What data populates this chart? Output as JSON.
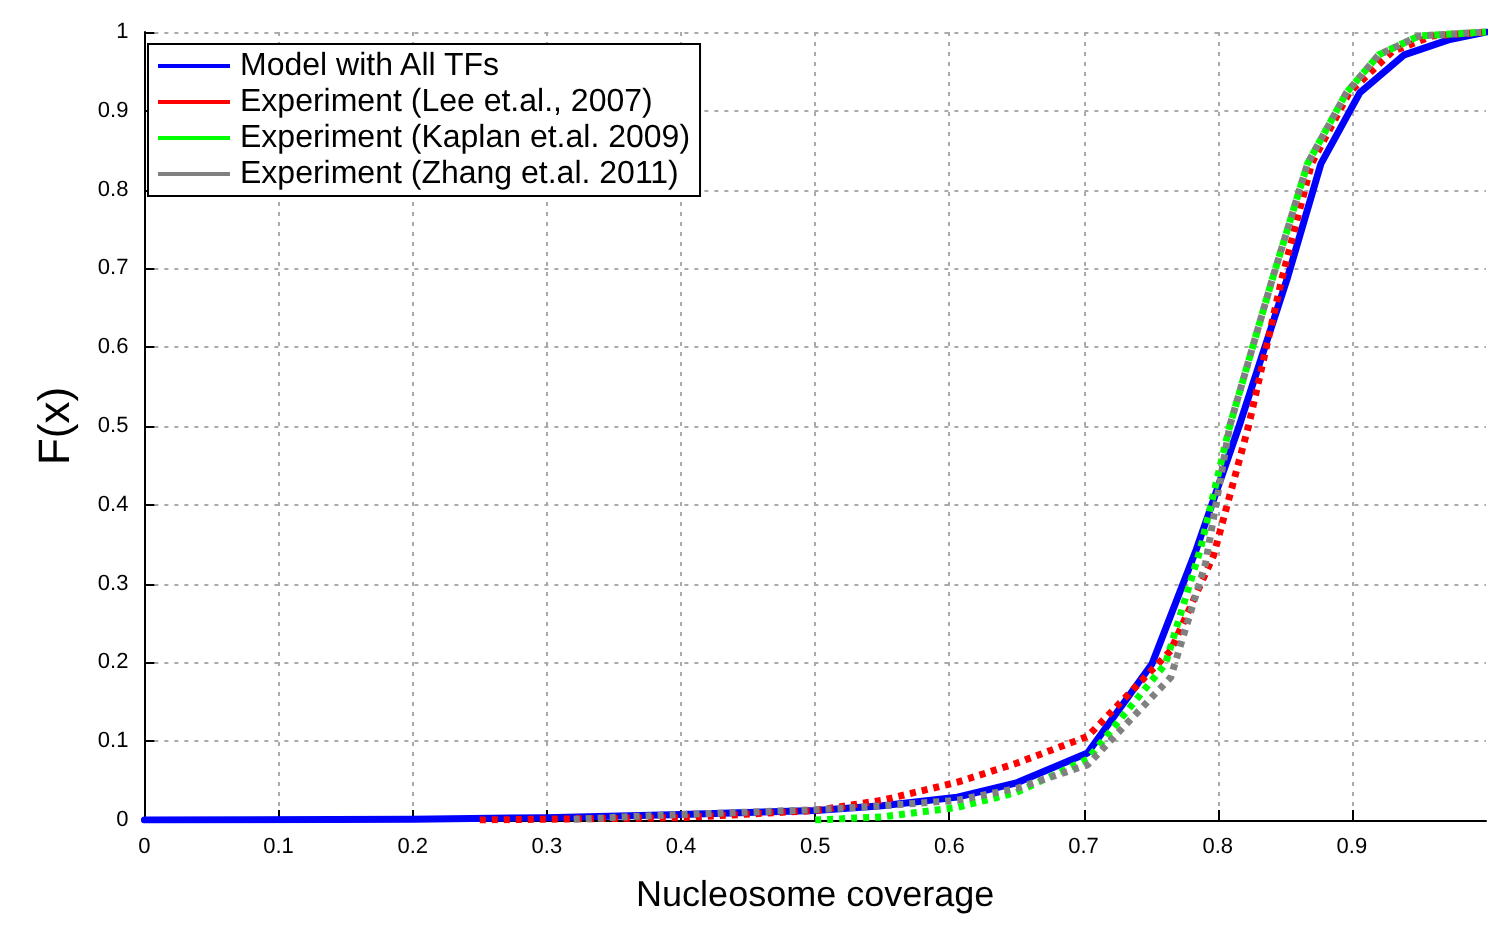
{
  "chart_data": {
    "type": "line",
    "xlabel": "Nucleosome coverage",
    "ylabel": "F(x)",
    "xlim": [
      0,
      1
    ],
    "ylim": [
      0,
      1
    ],
    "xticks": [
      0,
      0.1,
      0.2,
      0.3,
      0.4,
      0.5,
      0.6,
      0.7,
      0.8,
      0.9
    ],
    "yticks": [
      0,
      0.1,
      0.2,
      0.3,
      0.4,
      0.5,
      0.6,
      0.7,
      0.8,
      0.9,
      1
    ],
    "grid": true,
    "legend": "top left",
    "marker": "none",
    "series": [
      {
        "name": "Model with All TFs",
        "color": "#0000ff",
        "line_style": "solid",
        "x": [
          0,
          0.2,
          0.3,
          0.4,
          0.5,
          0.55,
          0.606,
          0.65,
          0.703,
          0.751,
          0.784,
          0.816,
          0.852,
          0.877,
          0.906,
          0.939,
          0.972,
          1
        ],
        "values": [
          0,
          0.001,
          0.003,
          0.007,
          0.012,
          0.018,
          0.029,
          0.047,
          0.085,
          0.198,
          0.343,
          0.5,
          0.688,
          0.833,
          0.923,
          0.971,
          0.99,
          1
        ]
      },
      {
        "name": "Experiment (Lee et.al., 2007)",
        "color": "#ff0000",
        "line_style": "dotted",
        "x": [
          0.25,
          0.3,
          0.4,
          0.5,
          0.55,
          0.606,
          0.65,
          0.703,
          0.765,
          0.797,
          0.823,
          0.848,
          0.87,
          0.898,
          0.93,
          0.96,
          1
        ],
        "values": [
          0,
          0.001,
          0.003,
          0.012,
          0.025,
          0.048,
          0.072,
          0.106,
          0.215,
          0.336,
          0.5,
          0.688,
          0.833,
          0.923,
          0.975,
          0.995,
          1
        ]
      },
      {
        "name": "Experiment (Kaplan et.al. 2009)",
        "color": "#00ff00",
        "line_style": "dotted",
        "x": [
          0.5,
          0.55,
          0.606,
          0.65,
          0.703,
          0.761,
          0.787,
          0.809,
          0.841,
          0.867,
          0.896,
          0.92,
          0.95,
          1
        ],
        "values": [
          0,
          0.004,
          0.016,
          0.035,
          0.077,
          0.198,
          0.343,
          0.5,
          0.688,
          0.833,
          0.923,
          0.971,
          0.995,
          1
        ]
      },
      {
        "name": "Experiment (Zhang et.al. 2011)",
        "color": "#808080",
        "line_style": "dotted",
        "x": [
          0.32,
          0.4,
          0.5,
          0.55,
          0.606,
          0.65,
          0.703,
          0.765,
          0.791,
          0.809,
          0.841,
          0.867,
          0.896,
          0.92,
          0.95,
          1
        ],
        "values": [
          0.001,
          0.007,
          0.013,
          0.018,
          0.025,
          0.04,
          0.07,
          0.181,
          0.326,
          0.5,
          0.688,
          0.833,
          0.923,
          0.971,
          0.995,
          1
        ]
      }
    ]
  }
}
